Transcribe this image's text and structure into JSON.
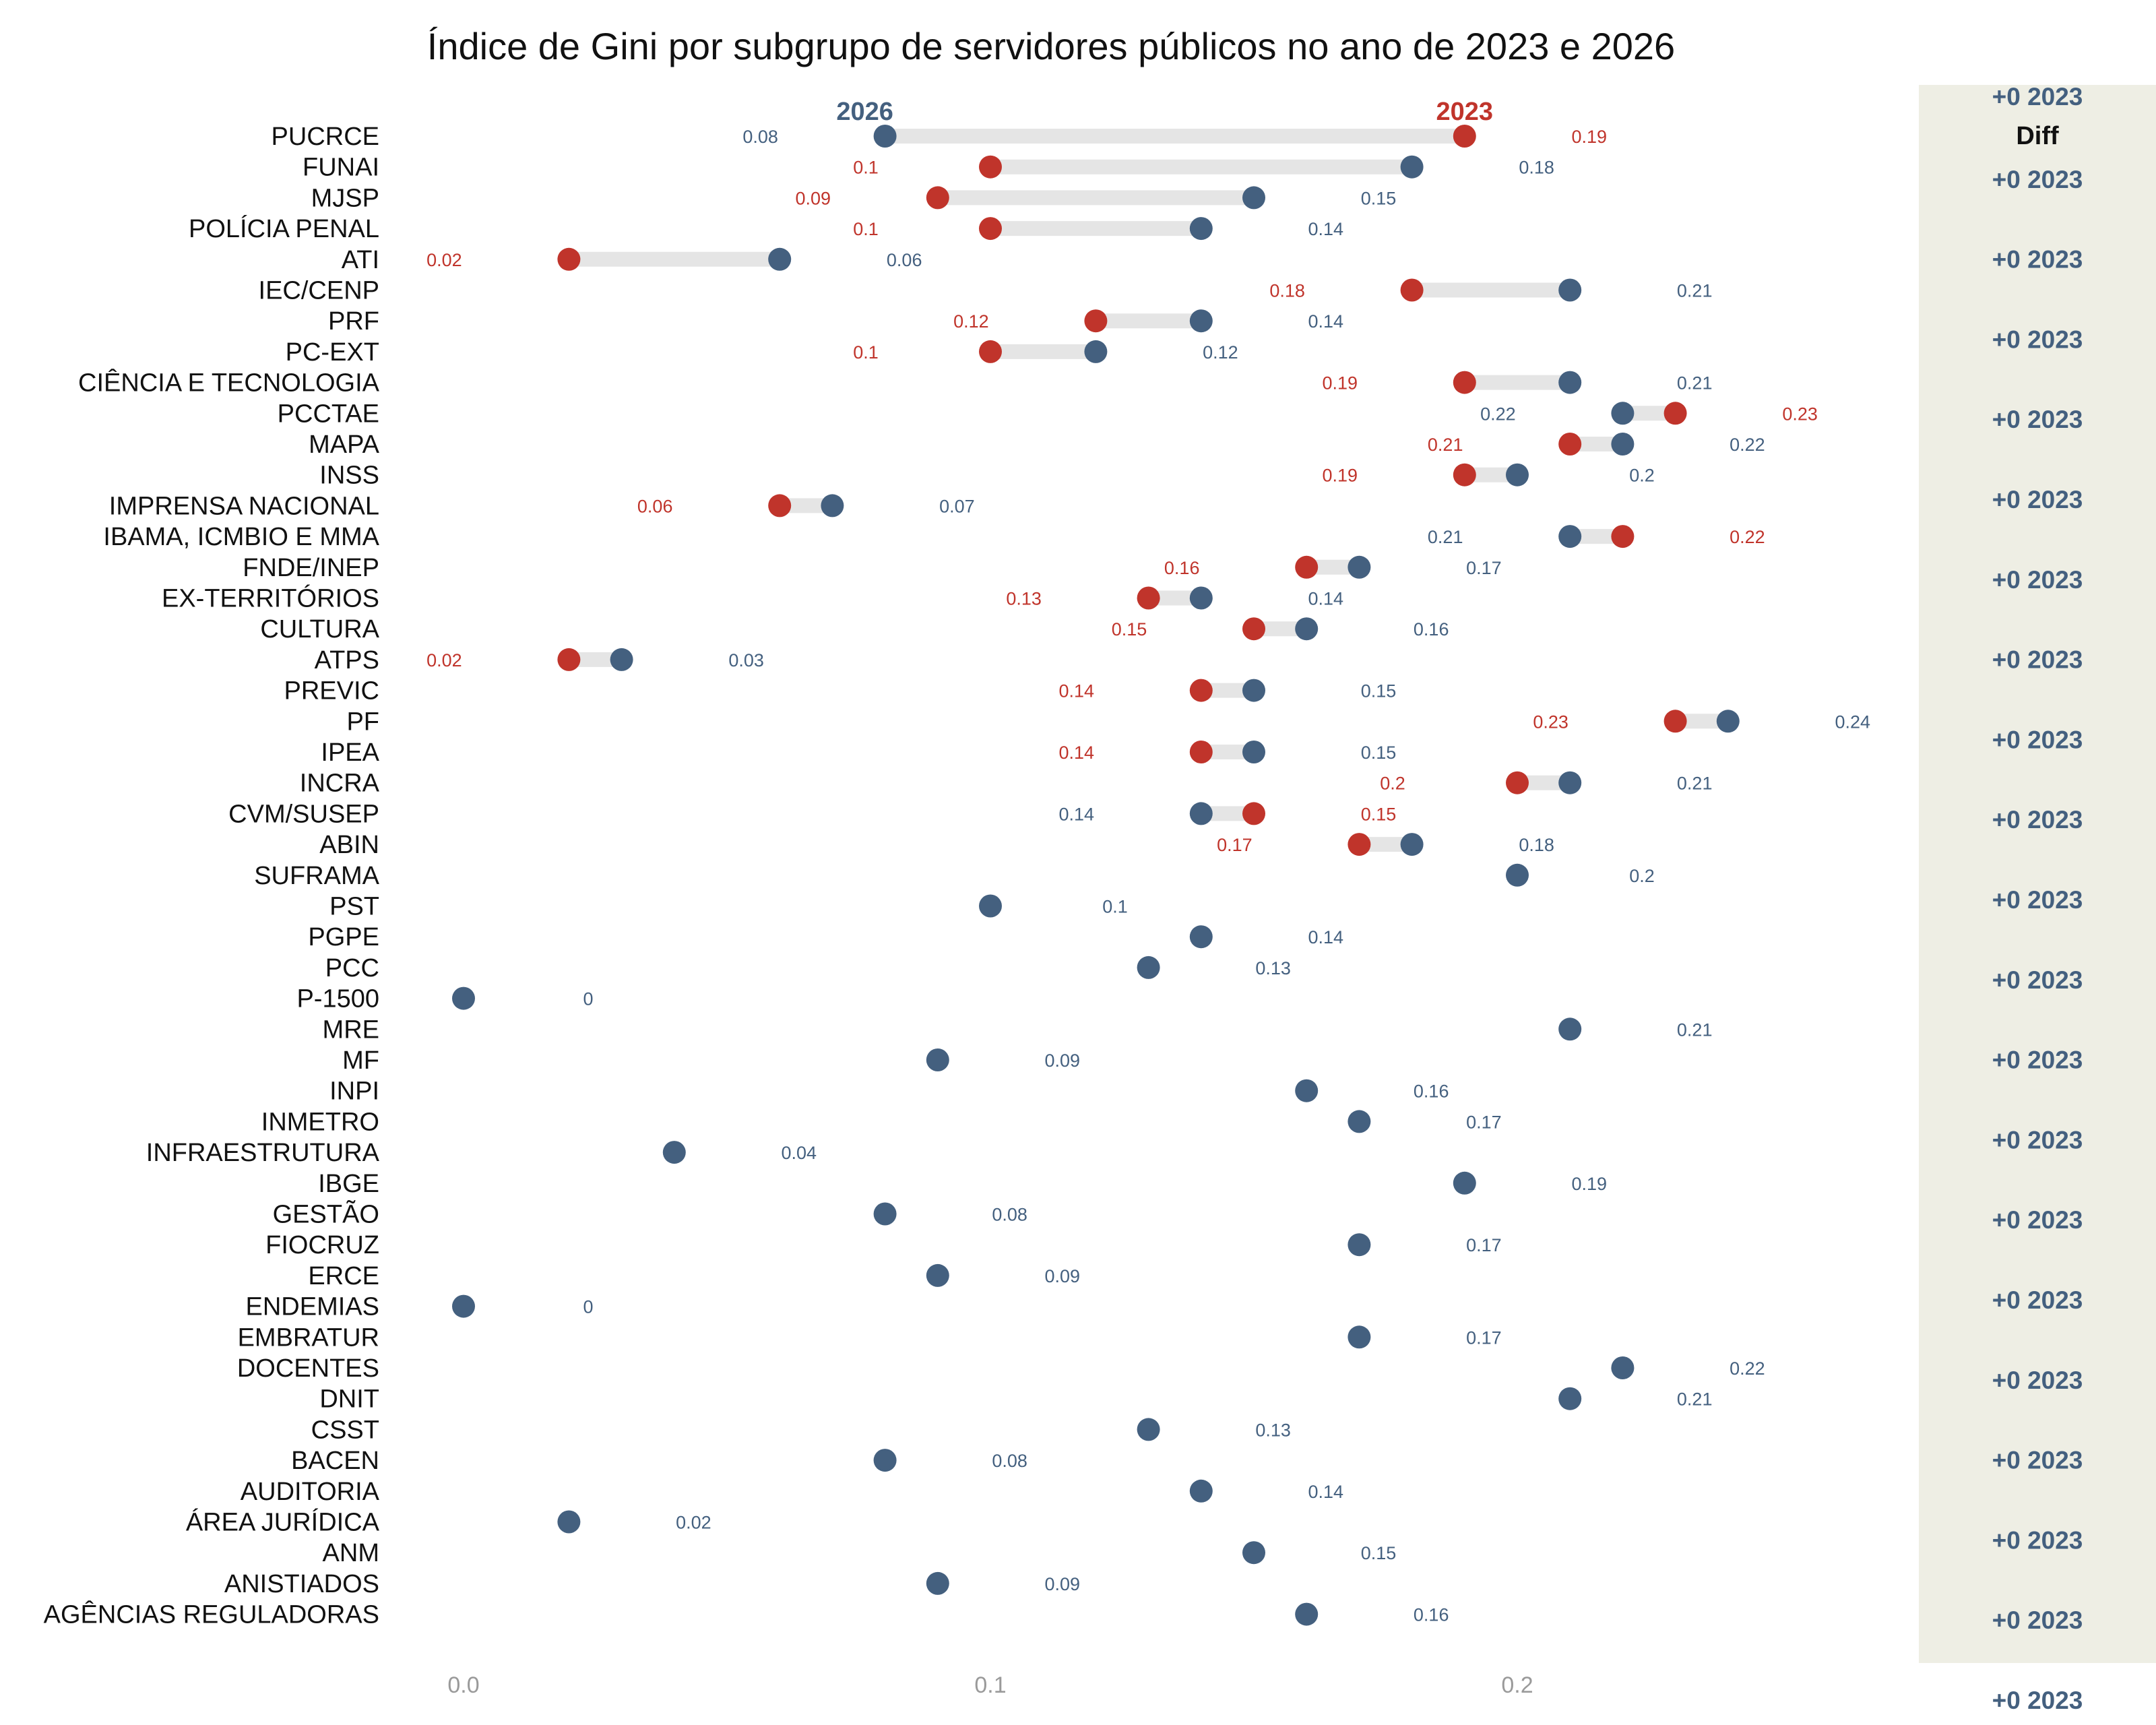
{
  "colors": {
    "y2026": "#44607f",
    "y2023": "#c0342b",
    "segment": "#e5e5e5",
    "panel": "#eeeee4"
  },
  "chart_data": {
    "type": "dumbbell",
    "title": "Índice de Gini por subgrupo de servidores públicos no ano de 2023 e 2026",
    "xlim": [
      -0.01,
      0.255
    ],
    "x_ticks": [
      {
        "value": 0.0,
        "label": "0.0"
      },
      {
        "value": 0.1,
        "label": "0.1"
      },
      {
        "value": 0.2,
        "label": "0.2"
      }
    ],
    "legend": {
      "y2026": "2026",
      "y2023": "2023"
    },
    "diff_panel": {
      "header": "Diff",
      "labels": [
        "+0 2023",
        "+0 2023",
        "+0 2023",
        "+0 2023",
        "+0 2023",
        "+0 2023",
        "+0 2023",
        "+0 2023",
        "+0 2023",
        "+0 2023",
        "+0 2023",
        "+0 2023",
        "+0 2023",
        "+0 2023",
        "+0 2023",
        "+0 2023",
        "+0 2023",
        "+0 2023",
        "+0 2023",
        "+0 2023",
        "+0 2023"
      ]
    },
    "rows": [
      {
        "category": "PUCRCE",
        "v2026": 0.08,
        "v2023": 0.19,
        "l2026": "0.08",
        "l2023": "0.19"
      },
      {
        "category": "FUNAI",
        "v2026": 0.18,
        "v2023": 0.1,
        "l2026": "0.18",
        "l2023": "0.1"
      },
      {
        "category": "MJSP",
        "v2026": 0.15,
        "v2023": 0.09,
        "l2026": "0.15",
        "l2023": "0.09"
      },
      {
        "category": "POLÍCIA PENAL",
        "v2026": 0.14,
        "v2023": 0.1,
        "l2026": "0.14",
        "l2023": "0.1"
      },
      {
        "category": "ATI",
        "v2026": 0.06,
        "v2023": 0.02,
        "l2026": "0.06",
        "l2023": "0.02"
      },
      {
        "category": "IEC/CENP",
        "v2026": 0.21,
        "v2023": 0.18,
        "l2026": "0.21",
        "l2023": "0.18"
      },
      {
        "category": "PRF",
        "v2026": 0.14,
        "v2023": 0.12,
        "l2026": "0.14",
        "l2023": "0.12"
      },
      {
        "category": "PC-EXT",
        "v2026": 0.12,
        "v2023": 0.1,
        "l2026": "0.12",
        "l2023": "0.1"
      },
      {
        "category": "CIÊNCIA E TECNOLOGIA",
        "v2026": 0.21,
        "v2023": 0.19,
        "l2026": "0.21",
        "l2023": "0.19"
      },
      {
        "category": "PCCTAE",
        "v2026": 0.22,
        "v2023": 0.23,
        "l2026": "0.22",
        "l2023": "0.23"
      },
      {
        "category": "MAPA",
        "v2026": 0.22,
        "v2023": 0.21,
        "l2026": "0.22",
        "l2023": "0.21"
      },
      {
        "category": "INSS",
        "v2026": 0.2,
        "v2023": 0.19,
        "l2026": "0.2",
        "l2023": "0.19"
      },
      {
        "category": "IMPRENSA NACIONAL",
        "v2026": 0.07,
        "v2023": 0.06,
        "l2026": "0.07",
        "l2023": "0.06"
      },
      {
        "category": "IBAMA, ICMBIO E MMA",
        "v2026": 0.21,
        "v2023": 0.22,
        "l2026": "0.21",
        "l2023": "0.22"
      },
      {
        "category": "FNDE/INEP",
        "v2026": 0.17,
        "v2023": 0.16,
        "l2026": "0.17",
        "l2023": "0.16"
      },
      {
        "category": "EX-TERRITÓRIOS",
        "v2026": 0.14,
        "v2023": 0.13,
        "l2026": "0.14",
        "l2023": "0.13"
      },
      {
        "category": "CULTURA",
        "v2026": 0.16,
        "v2023": 0.15,
        "l2026": "0.16",
        "l2023": "0.15"
      },
      {
        "category": "ATPS",
        "v2026": 0.03,
        "v2023": 0.02,
        "l2026": "0.03",
        "l2023": "0.02"
      },
      {
        "category": "PREVIC",
        "v2026": 0.15,
        "v2023": 0.14,
        "l2026": "0.15",
        "l2023": "0.14"
      },
      {
        "category": "PF",
        "v2026": 0.24,
        "v2023": 0.23,
        "l2026": "0.24",
        "l2023": "0.23"
      },
      {
        "category": "IPEA",
        "v2026": 0.15,
        "v2023": 0.14,
        "l2026": "0.15",
        "l2023": "0.14"
      },
      {
        "category": "INCRA",
        "v2026": 0.21,
        "v2023": 0.2,
        "l2026": "0.21",
        "l2023": "0.2"
      },
      {
        "category": "CVM/SUSEP",
        "v2026": 0.14,
        "v2023": 0.15,
        "l2026": "0.14",
        "l2023": "0.15"
      },
      {
        "category": "ABIN",
        "v2026": 0.18,
        "v2023": 0.17,
        "l2026": "0.18",
        "l2023": "0.17"
      },
      {
        "category": "SUFRAMA",
        "v2026": 0.2,
        "v2023": null,
        "l2026": "0.2",
        "l2023": null
      },
      {
        "category": "PST",
        "v2026": 0.1,
        "v2023": null,
        "l2026": "0.1",
        "l2023": null
      },
      {
        "category": "PGPE",
        "v2026": 0.14,
        "v2023": null,
        "l2026": "0.14",
        "l2023": null
      },
      {
        "category": "PCC",
        "v2026": 0.13,
        "v2023": null,
        "l2026": "0.13",
        "l2023": null
      },
      {
        "category": "P-1500",
        "v2026": 0.0,
        "v2023": null,
        "l2026": "0",
        "l2023": null
      },
      {
        "category": "MRE",
        "v2026": 0.21,
        "v2023": null,
        "l2026": "0.21",
        "l2023": null
      },
      {
        "category": "MF",
        "v2026": 0.09,
        "v2023": null,
        "l2026": "0.09",
        "l2023": null
      },
      {
        "category": "INPI",
        "v2026": 0.16,
        "v2023": null,
        "l2026": "0.16",
        "l2023": null
      },
      {
        "category": "INMETRO",
        "v2026": 0.17,
        "v2023": null,
        "l2026": "0.17",
        "l2023": null
      },
      {
        "category": "INFRAESTRUTURA",
        "v2026": 0.04,
        "v2023": null,
        "l2026": "0.04",
        "l2023": null
      },
      {
        "category": "IBGE",
        "v2026": 0.19,
        "v2023": null,
        "l2026": "0.19",
        "l2023": null
      },
      {
        "category": "GESTÃO",
        "v2026": 0.08,
        "v2023": null,
        "l2026": "0.08",
        "l2023": null
      },
      {
        "category": "FIOCRUZ",
        "v2026": 0.17,
        "v2023": null,
        "l2026": "0.17",
        "l2023": null
      },
      {
        "category": "ERCE",
        "v2026": 0.09,
        "v2023": null,
        "l2026": "0.09",
        "l2023": null
      },
      {
        "category": "ENDEMIAS",
        "v2026": 0.0,
        "v2023": null,
        "l2026": "0",
        "l2023": null
      },
      {
        "category": "EMBRATUR",
        "v2026": 0.17,
        "v2023": null,
        "l2026": "0.17",
        "l2023": null
      },
      {
        "category": "DOCENTES",
        "v2026": 0.22,
        "v2023": null,
        "l2026": "0.22",
        "l2023": null
      },
      {
        "category": "DNIT",
        "v2026": 0.21,
        "v2023": null,
        "l2026": "0.21",
        "l2023": null
      },
      {
        "category": "CSST",
        "v2026": 0.13,
        "v2023": null,
        "l2026": "0.13",
        "l2023": null
      },
      {
        "category": "BACEN",
        "v2026": 0.08,
        "v2023": null,
        "l2026": "0.08",
        "l2023": null
      },
      {
        "category": "AUDITORIA",
        "v2026": 0.14,
        "v2023": null,
        "l2026": "0.14",
        "l2023": null
      },
      {
        "category": "ÁREA JURÍDICA",
        "v2026": 0.02,
        "v2023": null,
        "l2026": "0.02",
        "l2023": null
      },
      {
        "category": "ANM",
        "v2026": 0.15,
        "v2023": null,
        "l2026": "0.15",
        "l2023": null
      },
      {
        "category": "ANISTIADOS",
        "v2026": 0.09,
        "v2023": null,
        "l2026": "0.09",
        "l2023": null
      },
      {
        "category": "AGÊNCIAS REGULADORAS",
        "v2026": 0.16,
        "v2023": null,
        "l2026": "0.16",
        "l2023": null
      }
    ]
  }
}
